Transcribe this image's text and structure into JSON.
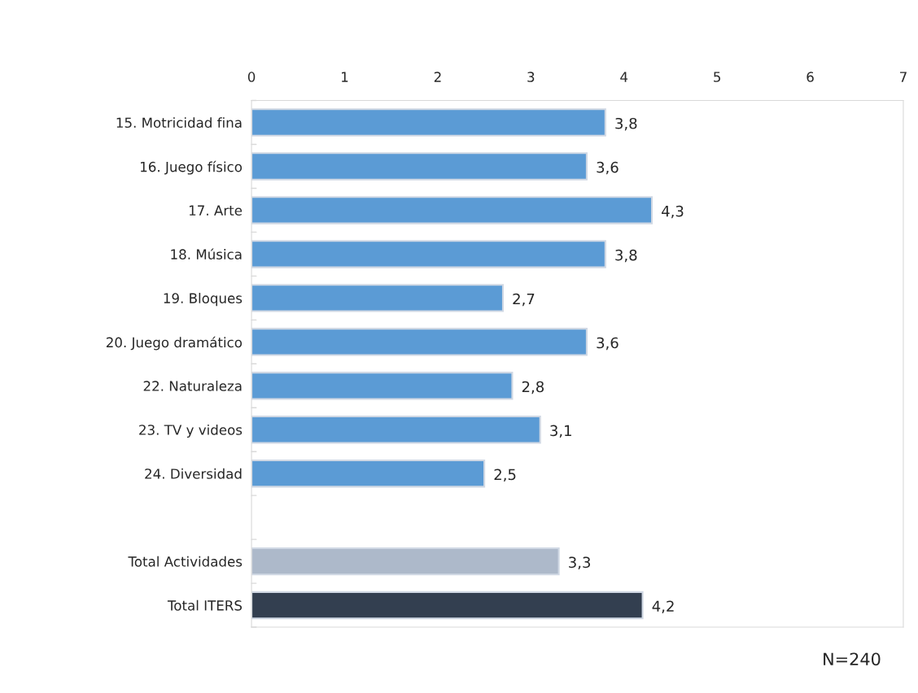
{
  "chart_data": {
    "type": "bar",
    "orientation": "horizontal",
    "categories": [
      "15. Motricidad fina",
      "16. Juego físico",
      "17. Arte",
      "18. Música",
      "19. Bloques",
      "20. Juego dramático",
      "22. Naturaleza",
      "23. TV y videos",
      "24. Diversidad",
      null,
      "Total Actividades",
      "Total ITERS"
    ],
    "values": [
      3.8,
      3.6,
      4.3,
      3.8,
      2.7,
      3.6,
      2.8,
      3.1,
      2.5,
      null,
      3.3,
      4.2
    ],
    "colors": [
      "#5b9bd5",
      "#5b9bd5",
      "#5b9bd5",
      "#5b9bd5",
      "#5b9bd5",
      "#5b9bd5",
      "#5b9bd5",
      "#5b9bd5",
      "#5b9bd5",
      null,
      "#adb9ca",
      "#333f50"
    ],
    "value_labels": [
      "3,8",
      "3,6",
      "4,3",
      "3,8",
      "2,7",
      "3,6",
      "2,8",
      "3,1",
      "2,5",
      null,
      "3,3",
      "4,2"
    ],
    "xlim": [
      0,
      7
    ],
    "xticks": [
      0,
      1,
      2,
      3,
      4,
      5,
      6,
      7
    ],
    "grid": false,
    "annotations": [
      "N=240"
    ]
  }
}
